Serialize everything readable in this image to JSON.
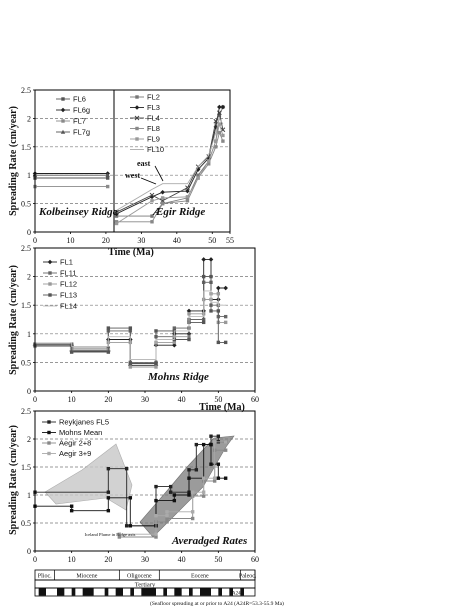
{
  "panels": [
    {
      "ylabel": "Spreading Rate (cm/year)",
      "xlabel": "Time (Ma)",
      "xticks": [
        "0",
        "10",
        "20",
        "30",
        "40",
        "50",
        "55"
      ],
      "yticks": [
        "0",
        "0.5",
        "1",
        "1.5",
        "2",
        "2.5"
      ],
      "subtitles": [
        "Kolbeinsey Ridge",
        "Ægir Ridge"
      ],
      "legend_left": [
        "FL6",
        "FL6g",
        "FL7",
        "FL7g"
      ],
      "legend_right": [
        "FL2",
        "FL3",
        "FL4",
        "FL8",
        "FL9",
        "FL10"
      ],
      "annotations": [
        "east",
        "west"
      ]
    },
    {
      "ylabel": "Spreading Rate (cm/year)",
      "xlabel": "Time (Ma)",
      "xticks": [
        "0",
        "10",
        "20",
        "30",
        "40",
        "50",
        "60"
      ],
      "yticks": [
        "0",
        "0.5",
        "1",
        "1.5",
        "2",
        "2.5"
      ],
      "title": "Mohns Ridge",
      "legend": [
        "FL1",
        "FL11",
        "FL12",
        "FL13",
        "FL14"
      ]
    },
    {
      "ylabel": "Spreading Rate (cm/year)",
      "xticks": [
        "0",
        "10",
        "20",
        "30",
        "40",
        "50",
        "60"
      ],
      "yticks": [
        "0",
        "0.5",
        "1",
        "1.5",
        "2",
        "2.5"
      ],
      "title": "Averadged Rates",
      "legend": [
        "Reykjanes FL5",
        "Mohns Mean",
        "Aegir 2+8",
        "Aegir 3+9"
      ],
      "note": "Iceland Plume in Ridge axis"
    }
  ],
  "timescale": {
    "epochs": [
      "Plioc.",
      "Miocene",
      "Oligocene",
      "Eocene",
      "Paleoc."
    ],
    "period": "Tertiary",
    "mag_label": "A24",
    "footnote": "(Seafloor spreading at or prior to A24 (A24R=53.3-55.9 Ma)"
  },
  "chart_data": [
    {
      "type": "line",
      "title": "Kolbeinsey Ridge / Ægir Ridge",
      "xlabel": "Time (Ma)",
      "ylabel": "Spreading Rate (cm/year)",
      "xlim": [
        0,
        55
      ],
      "ylim": [
        0,
        2.5
      ],
      "grid": true,
      "series": [
        {
          "name": "FL6",
          "color": "#555555",
          "marker": "square",
          "x": [
            0,
            20.5
          ],
          "y": [
            0.95,
            0.95
          ]
        },
        {
          "name": "FL6g",
          "color": "#222222",
          "marker": "diamond",
          "x": [
            0,
            20.5
          ],
          "y": [
            1.03,
            1.03
          ]
        },
        {
          "name": "FL7",
          "color": "#8a8a8a",
          "marker": "square",
          "x": [
            0,
            20.5
          ],
          "y": [
            0.8,
            0.8
          ]
        },
        {
          "name": "FL7g",
          "color": "#555555",
          "marker": "triangle",
          "x": [
            0,
            20.5
          ],
          "y": [
            1.0,
            1.0
          ]
        },
        {
          "name": "FL2",
          "color": "#777777",
          "marker": "square",
          "x": [
            23,
            33,
            36,
            43,
            46,
            49,
            51,
            52,
            53
          ],
          "y": [
            0.28,
            0.28,
            0.5,
            0.6,
            1.0,
            1.25,
            1.6,
            2.05,
            2.2
          ]
        },
        {
          "name": "FL3",
          "color": "#222222",
          "marker": "diamond",
          "x": [
            23,
            33,
            36,
            43,
            46,
            49,
            51,
            52,
            53
          ],
          "y": [
            0.32,
            0.62,
            0.7,
            0.72,
            1.1,
            1.3,
            1.85,
            2.2,
            2.2
          ]
        },
        {
          "name": "FL4",
          "color": "#444444",
          "marker": "cross",
          "x": [
            23,
            33,
            36,
            43,
            46,
            49,
            51,
            52,
            53
          ],
          "y": [
            0.35,
            0.65,
            0.55,
            0.78,
            1.15,
            1.33,
            1.95,
            2.1,
            1.8
          ]
        },
        {
          "name": "FL8",
          "color": "#888888",
          "marker": "square",
          "x": [
            23,
            33,
            36,
            43,
            46,
            49,
            51,
            52,
            53
          ],
          "y": [
            0.18,
            0.18,
            0.5,
            0.55,
            0.95,
            1.2,
            1.5,
            1.75,
            1.6
          ]
        },
        {
          "name": "FL9",
          "color": "#999999",
          "marker": "square",
          "x": [
            23,
            33,
            36,
            43,
            46,
            49,
            51,
            52,
            53
          ],
          "y": [
            0.15,
            0.55,
            0.6,
            0.62,
            0.95,
            1.25,
            1.6,
            1.9,
            1.7
          ]
        },
        {
          "name": "FL10",
          "color": "#aaaaaa",
          "marker": "none",
          "x": [
            23,
            33,
            36,
            43,
            46,
            49,
            51,
            52,
            53
          ],
          "y": [
            0.38,
            0.75,
            0.85,
            0.85,
            1.15,
            1.35,
            1.75,
            2.0,
            1.9
          ]
        }
      ]
    },
    {
      "type": "line",
      "title": "Mohns Ridge",
      "xlabel": "Time (Ma)",
      "ylabel": "Spreading Rate (cm/year)",
      "xlim": [
        0,
        60
      ],
      "ylim": [
        0,
        2.5
      ],
      "grid": true,
      "series": [
        {
          "name": "FL1",
          "color": "#222222",
          "marker": "diamond",
          "x": [
            0,
            10,
            10,
            20,
            20,
            26,
            26,
            33,
            33,
            38,
            38,
            42,
            42,
            46,
            46,
            48,
            48,
            50,
            50,
            52
          ],
          "y": [
            0.8,
            0.8,
            0.7,
            0.7,
            0.9,
            0.9,
            0.45,
            0.45,
            0.8,
            0.8,
            1.0,
            1.0,
            1.4,
            1.4,
            2.3,
            2.3,
            1.6,
            1.6,
            1.8,
            1.8
          ]
        },
        {
          "name": "FL11",
          "color": "#666666",
          "marker": "square",
          "x": [
            0,
            10,
            10,
            20,
            20,
            26,
            26,
            33,
            33,
            38,
            38,
            42,
            42,
            46,
            46,
            48,
            48,
            50,
            50,
            52
          ],
          "y": [
            0.82,
            0.82,
            0.75,
            0.75,
            1.05,
            1.05,
            0.5,
            0.5,
            0.95,
            0.95,
            1.1,
            1.1,
            1.25,
            1.25,
            1.9,
            1.9,
            1.5,
            1.5,
            1.3,
            1.3
          ]
        },
        {
          "name": "FL12",
          "color": "#999999",
          "marker": "square",
          "x": [
            0,
            10,
            10,
            20,
            20,
            26,
            26,
            33,
            33,
            38,
            38,
            42,
            42,
            46,
            46,
            48,
            48,
            50,
            50,
            52
          ],
          "y": [
            0.78,
            0.78,
            0.72,
            0.72,
            0.85,
            0.85,
            0.42,
            0.42,
            0.85,
            0.85,
            0.95,
            0.95,
            1.35,
            1.35,
            1.6,
            1.6,
            1.7,
            1.7,
            1.2,
            1.2
          ]
        },
        {
          "name": "FL13",
          "color": "#555555",
          "marker": "square",
          "x": [
            0,
            10,
            10,
            20,
            20,
            26,
            26,
            33,
            33,
            38,
            38,
            42,
            42,
            46,
            46,
            48,
            48,
            50,
            50,
            52
          ],
          "y": [
            0.8,
            0.8,
            0.68,
            0.68,
            1.1,
            1.1,
            0.48,
            0.48,
            1.05,
            1.05,
            0.9,
            0.9,
            1.2,
            1.2,
            2.0,
            2.0,
            1.4,
            1.4,
            0.85,
            0.85
          ]
        },
        {
          "name": "FL14",
          "color": "#bbbbbb",
          "marker": "none",
          "x": [
            0,
            10,
            10,
            20,
            20,
            26,
            26,
            33,
            33,
            38,
            38,
            42,
            42,
            46,
            46,
            48,
            48,
            50,
            50,
            52
          ],
          "y": [
            0.84,
            0.84,
            0.78,
            0.78,
            0.95,
            0.95,
            0.55,
            0.55,
            0.9,
            0.9,
            1.05,
            1.05,
            1.3,
            1.3,
            1.75,
            1.75,
            1.55,
            1.55,
            1.5,
            1.5
          ]
        }
      ]
    },
    {
      "type": "line",
      "title": "Averadged Rates",
      "ylabel": "Spreading Rate (cm/year)",
      "xlim": [
        0,
        60
      ],
      "ylim": [
        0,
        2.5
      ],
      "grid": true,
      "series": [
        {
          "name": "Reykjanes FL5",
          "color": "#222222",
          "marker": "square",
          "x": [
            0,
            20,
            20,
            25,
            25,
            33,
            33,
            37,
            37,
            42,
            42,
            44,
            44,
            48,
            48,
            50,
            50,
            52
          ],
          "y": [
            1.05,
            1.05,
            1.47,
            1.47,
            0.45,
            0.45,
            1.15,
            1.15,
            1.05,
            1.05,
            1.45,
            1.45,
            1.9,
            1.9,
            2.05,
            2.05,
            1.95,
            1.95
          ]
        },
        {
          "name": "Mohns Mean",
          "color": "#111111",
          "marker": "square",
          "x": [
            0,
            10,
            10,
            20,
            20,
            26,
            26,
            33,
            33,
            38,
            38,
            42,
            42,
            46,
            46,
            48,
            48,
            50,
            50,
            52
          ],
          "y": [
            0.8,
            0.8,
            0.72,
            0.72,
            0.95,
            0.95,
            0.45,
            0.45,
            0.9,
            0.9,
            1.0,
            1.0,
            1.3,
            1.3,
            1.9,
            1.9,
            1.55,
            1.55,
            1.3,
            1.3
          ]
        },
        {
          "name": "Aegir 2+8",
          "color": "#888888",
          "marker": "square",
          "x": [
            23,
            33,
            33,
            36,
            36,
            43,
            43,
            46,
            46,
            49,
            49,
            52
          ],
          "y": [
            0.25,
            0.25,
            0.52,
            0.52,
            0.58,
            0.58,
            0.98,
            0.98,
            1.25,
            1.25,
            1.8,
            1.8
          ]
        },
        {
          "name": "Aegir 3+9",
          "color": "#aaaaaa",
          "marker": "square",
          "x": [
            23,
            33,
            33,
            36,
            36,
            43,
            43,
            46,
            46,
            49,
            49,
            52
          ],
          "y": [
            0.3,
            0.3,
            0.63,
            0.63,
            0.7,
            0.7,
            1.05,
            1.05,
            1.3,
            1.3,
            1.95,
            1.95
          ]
        }
      ]
    }
  ]
}
